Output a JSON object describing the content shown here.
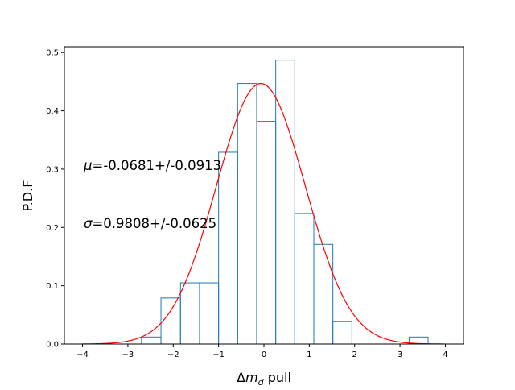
{
  "chart_data": {
    "type": "histogram",
    "title": "",
    "xlabel_prefix": "Δ",
    "xlabel_var": "m",
    "xlabel_sub": "d",
    "xlabel_suffix": " pull",
    "ylabel": "P.D.F",
    "xlim": [
      -4.4,
      4.4
    ],
    "ylim": [
      0,
      0.51
    ],
    "xticks": [
      -4,
      -3,
      -2,
      -1,
      0,
      1,
      2,
      3,
      4
    ],
    "xtick_labels": [
      "−4",
      "−3",
      "−2",
      "−1",
      "0",
      "1",
      "2",
      "3",
      "4"
    ],
    "yticks": [
      0.0,
      0.1,
      0.2,
      0.3,
      0.4,
      0.5
    ],
    "ytick_labels": [
      "0.0",
      "0.1",
      "0.2",
      "0.3",
      "0.4",
      "0.5"
    ],
    "grid": false,
    "histogram": {
      "color": "#1f77b4",
      "bin_edges": [
        -2.7,
        -2.27,
        -1.84,
        -1.42,
        -1.0,
        -0.58,
        -0.16,
        0.26,
        0.68,
        1.1,
        1.52,
        1.94,
        2.36,
        2.78,
        3.2,
        3.62
      ],
      "values": [
        0.012,
        0.079,
        0.105,
        0.105,
        0.329,
        0.447,
        0.382,
        0.487,
        0.224,
        0.171,
        0.039,
        0.0,
        0.0,
        0.0,
        0.012
      ]
    },
    "fit": {
      "color": "#ff0000",
      "mu": -0.0681,
      "sigma": 0.9808,
      "peak": 0.447,
      "x_range": [
        -4,
        4
      ]
    },
    "annotations": [
      {
        "symbol": "μ",
        "text": "=-0.0681+/-0.0913"
      },
      {
        "symbol": "σ",
        "text": "=0.9808+/-0.0625"
      }
    ]
  }
}
